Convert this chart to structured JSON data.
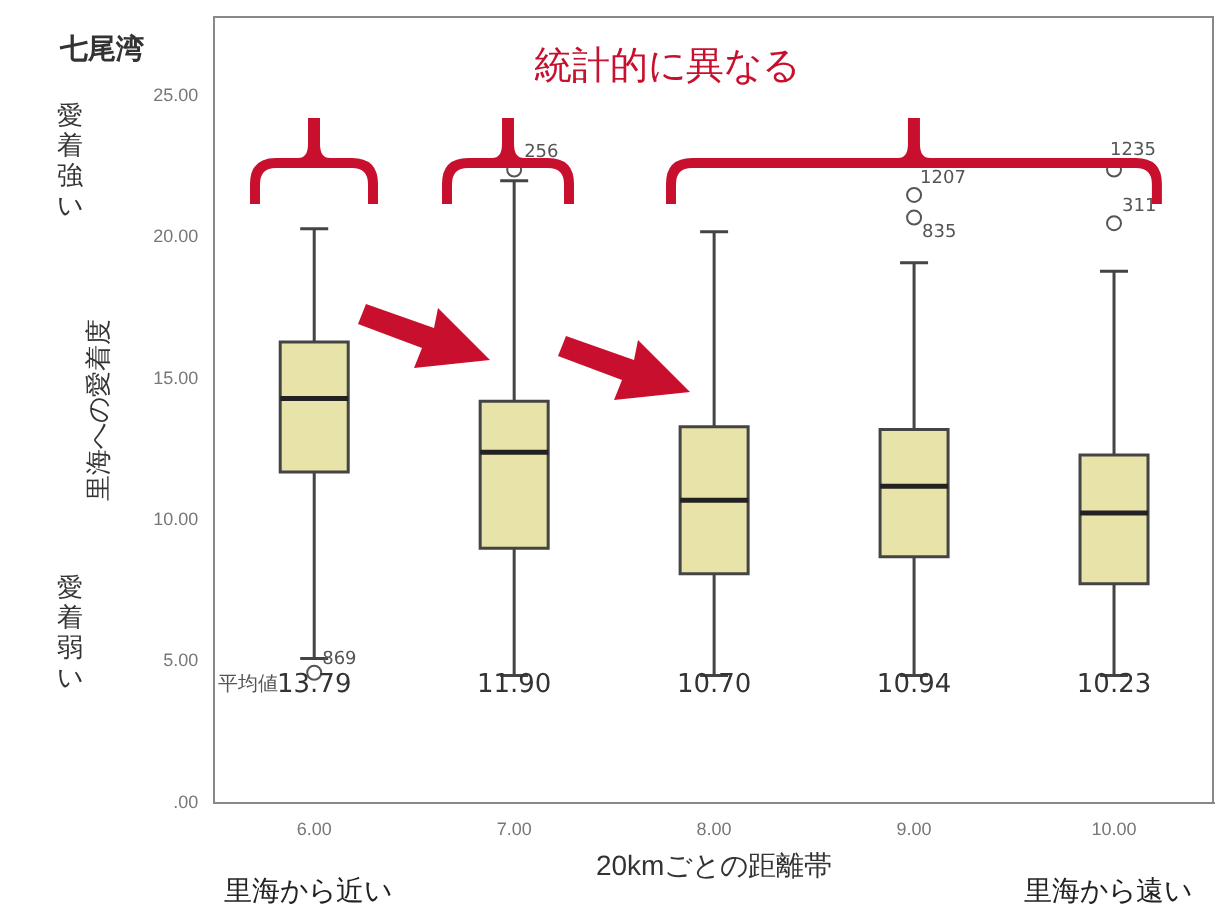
{
  "chart_data": {
    "type": "box",
    "title": "七尾湾",
    "xlabel": "20kmごとの距離帯",
    "ylabel": "里海への愛着度",
    "categories": [
      "6.00",
      "7.00",
      "8.00",
      "9.00",
      "10.00"
    ],
    "boxes": [
      {
        "low": 5.1,
        "q1": 11.7,
        "median": 14.3,
        "q3": 16.3,
        "high": 20.3,
        "outliers": [
          4.6
        ]
      },
      {
        "low": 4.5,
        "q1": 9.0,
        "median": 12.4,
        "q3": 14.2,
        "high": 22.0,
        "outliers": [
          22.4
        ]
      },
      {
        "low": 4.5,
        "q1": 8.1,
        "median": 10.7,
        "q3": 13.3,
        "high": 20.2
      },
      {
        "low": 4.5,
        "q1": 8.7,
        "median": 11.2,
        "q3": 13.2,
        "high": 19.1,
        "outliers": [
          21.5,
          20.7
        ]
      },
      {
        "low": 4.5,
        "q1": 7.75,
        "median": 10.25,
        "q3": 12.3,
        "high": 18.8,
        "outliers": [
          22.4,
          20.5
        ]
      }
    ],
    "color": "#e8e3a8",
    "value_labels": [
      "13.79",
      "11.90",
      "10.70",
      "10.94",
      "10.23"
    ],
    "ylim": [
      0,
      27.8
    ],
    "yticks": [
      {
        "value": 0,
        "label": ".00"
      },
      {
        "value": 5,
        "label": "5.00"
      },
      {
        "value": 10,
        "label": "10.00"
      },
      {
        "value": 15,
        "label": "15.00"
      },
      {
        "value": 20,
        "label": "20.00"
      },
      {
        "value": 25,
        "label": "25.00"
      }
    ],
    "grid": false,
    "legend": false,
    "annotations": [
      "統計的に異なる",
      "愛着強い",
      "愛着弱い",
      "里海から近い",
      "里海から遠い",
      "平均値",
      "869",
      "256",
      "1207",
      "835",
      "1235",
      "311"
    ]
  }
}
